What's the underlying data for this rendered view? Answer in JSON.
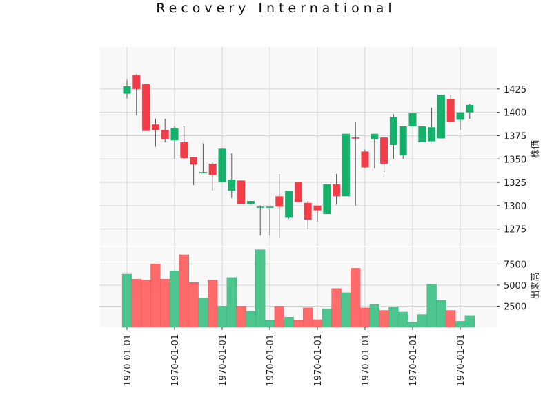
{
  "colors": {
    "up": "#15b06a",
    "down": "#f23c47",
    "up_volume": "#4cc68e",
    "down_volume": "#ff6b6b",
    "wick": "#555555",
    "panel_bg": "#f8f8f8",
    "grid": "#d5d5d5"
  },
  "chart_data": {
    "type": "candlestick",
    "title": "Recovery International",
    "price_panel": {
      "ylabel": "株価",
      "ylim": [
        1257,
        1470
      ],
      "yticks": [
        1275,
        1300,
        1325,
        1350,
        1375,
        1400,
        1425
      ]
    },
    "volume_panel": {
      "ylabel": "出来高",
      "ylim": [
        0,
        9500
      ],
      "yticks": [
        2500,
        5000,
        7500
      ],
      "ytick_labels": [
        "2500",
        "5000",
        "7500"
      ]
    },
    "x_tick_labels": [
      "1970-01-01",
      "1970-01-01",
      "1970-01-01",
      "1970-01-01",
      "1970-01-01",
      "1970-01-01",
      "1970-01-01",
      "1970-01-01"
    ],
    "x_tick_positions": [
      0,
      5,
      10,
      15,
      20,
      25,
      30,
      35
    ],
    "candles": [
      {
        "open": 1420,
        "high": 1435,
        "low": 1415,
        "close": 1428,
        "volume": 6300
      },
      {
        "open": 1440,
        "high": 1441,
        "low": 1397,
        "close": 1425,
        "volume": 5700
      },
      {
        "open": 1430,
        "high": 1430,
        "low": 1380,
        "close": 1380,
        "volume": 5600
      },
      {
        "open": 1387,
        "high": 1393,
        "low": 1363,
        "close": 1381,
        "volume": 7500
      },
      {
        "open": 1381,
        "high": 1393,
        "low": 1368,
        "close": 1371,
        "volume": 5700
      },
      {
        "open": 1370,
        "high": 1385,
        "low": 1350,
        "close": 1383,
        "volume": 6700
      },
      {
        "open": 1368,
        "high": 1385,
        "low": 1350,
        "close": 1351,
        "volume": 8600
      },
      {
        "open": 1352,
        "high": 1352,
        "low": 1322,
        "close": 1344,
        "volume": 5300
      },
      {
        "open": 1335,
        "high": 1367,
        "low": 1335,
        "close": 1336,
        "volume": 3500
      },
      {
        "open": 1345,
        "high": 1346,
        "low": 1316,
        "close": 1333,
        "volume": 5600
      },
      {
        "open": 1325,
        "high": 1361,
        "low": 1325,
        "close": 1361,
        "volume": 2500
      },
      {
        "open": 1316,
        "high": 1356,
        "low": 1308,
        "close": 1328,
        "volume": 5900
      },
      {
        "open": 1327,
        "high": 1327,
        "low": 1302,
        "close": 1302,
        "volume": 2500
      },
      {
        "open": 1302,
        "high": 1305,
        "low": 1301,
        "close": 1305,
        "volume": 1900
      },
      {
        "open": 1298,
        "high": 1300,
        "low": 1268,
        "close": 1299,
        "volume": 9200
      },
      {
        "open": 1299,
        "high": 1299,
        "low": 1268,
        "close": 1299,
        "volume": 800
      },
      {
        "open": 1310,
        "high": 1334,
        "low": 1266,
        "close": 1299,
        "volume": 2500
      },
      {
        "open": 1287,
        "high": 1316,
        "low": 1286,
        "close": 1316,
        "volume": 1200
      },
      {
        "open": 1325,
        "high": 1325,
        "low": 1304,
        "close": 1304,
        "volume": 800
      },
      {
        "open": 1303,
        "high": 1305,
        "low": 1275,
        "close": 1285,
        "volume": 2300
      },
      {
        "open": 1300,
        "high": 1300,
        "low": 1283,
        "close": 1295,
        "volume": 900
      },
      {
        "open": 1291,
        "high": 1323,
        "low": 1291,
        "close": 1323,
        "volume": 2200
      },
      {
        "open": 1323,
        "high": 1334,
        "low": 1301,
        "close": 1310,
        "volume": 4600
      },
      {
        "open": 1310,
        "high": 1377,
        "low": 1310,
        "close": 1377,
        "volume": 4100
      },
      {
        "open": 1373,
        "high": 1390,
        "low": 1300,
        "close": 1372,
        "volume": 7000
      },
      {
        "open": 1358,
        "high": 1360,
        "low": 1340,
        "close": 1341,
        "volume": 2300
      },
      {
        "open": 1371,
        "high": 1377,
        "low": 1340,
        "close": 1377,
        "volume": 2700
      },
      {
        "open": 1373,
        "high": 1373,
        "low": 1336,
        "close": 1345,
        "volume": 2000
      },
      {
        "open": 1365,
        "high": 1398,
        "low": 1350,
        "close": 1395,
        "volume": 2400
      },
      {
        "open": 1354,
        "high": 1385,
        "low": 1350,
        "close": 1385,
        "volume": 1800
      },
      {
        "open": 1385,
        "high": 1399,
        "low": 1385,
        "close": 1399,
        "volume": 600
      },
      {
        "open": 1368,
        "high": 1385,
        "low": 1368,
        "close": 1385,
        "volume": 1500
      },
      {
        "open": 1369,
        "high": 1405,
        "low": 1369,
        "close": 1384,
        "volume": 5100
      },
      {
        "open": 1372,
        "high": 1419,
        "low": 1372,
        "close": 1419,
        "volume": 3200
      },
      {
        "open": 1414,
        "high": 1419,
        "low": 1390,
        "close": 1390,
        "volume": 2000
      },
      {
        "open": 1392,
        "high": 1400,
        "low": 1381,
        "close": 1400,
        "volume": 700
      },
      {
        "open": 1400,
        "high": 1409,
        "low": 1393,
        "close": 1408,
        "volume": 1400
      }
    ]
  }
}
